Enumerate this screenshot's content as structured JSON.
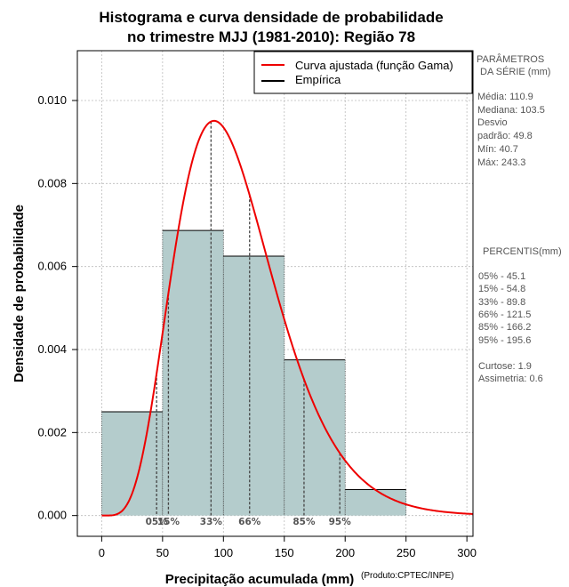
{
  "chart_data": {
    "type": "histogram",
    "title_lines": [
      "Histograma e curva densidade de probabilidade",
      "no trimestre MJJ (1981-2010): Região 78"
    ],
    "xlabel": "Precipitação acumulada (mm)",
    "ylabel": "Densidade de probabilidade",
    "xlim": [
      -20,
      305
    ],
    "ylim": [
      -0.0005,
      0.0112
    ],
    "x_ticks": [
      0,
      50,
      100,
      150,
      200,
      250,
      300
    ],
    "x_tick_labels": [
      "0",
      "50",
      "100",
      "150",
      "200",
      "250",
      "300"
    ],
    "y_ticks": [
      0.0,
      0.002,
      0.004,
      0.006,
      0.008,
      0.01
    ],
    "y_tick_labels": [
      "0.000",
      "0.002",
      "0.004",
      "0.006",
      "0.008",
      "0.010"
    ],
    "grid": true,
    "bins": [
      {
        "start": 0,
        "end": 50,
        "density": 0.0025
      },
      {
        "start": 50,
        "end": 100,
        "density": 0.00687
      },
      {
        "start": 100,
        "end": 150,
        "density": 0.00625
      },
      {
        "start": 150,
        "end": 200,
        "density": 0.00375
      },
      {
        "start": 200,
        "end": 250,
        "density": 0.000625
      }
    ],
    "bar_color": "#b4cccc",
    "curve": {
      "name": "Curva ajustada (função Gama)",
      "distribution": "gamma",
      "shape": 6.0,
      "scale": 18.45,
      "color": "#ee0000"
    },
    "legend": [
      {
        "label": "Curva ajustada (função Gama)",
        "color": "#ee0000"
      },
      {
        "label": "Empírica",
        "color": "#000000"
      }
    ],
    "legend_position": "top-right",
    "percentile_marks": [
      {
        "label": "05%",
        "value": 45.1
      },
      {
        "label": "15%",
        "value": 54.8
      },
      {
        "label": "33%",
        "value": 89.8
      },
      {
        "label": "66%",
        "value": 121.5
      },
      {
        "label": "85%",
        "value": 166.2
      },
      {
        "label": "95%",
        "value": 195.6
      }
    ],
    "credit": "(Produto:CPTEC/INPE)"
  },
  "side_panel": {
    "params_title": [
      "PARÂMETROS",
      "DA SÉRIE (mm)"
    ],
    "params": [
      "Média:  110.9",
      "Mediana:  103.5",
      "Desvio",
      "padrão:  49.8",
      "Mín:  40.7",
      "Máx:  243.3"
    ],
    "percentiles_title": "PERCENTIS(mm)",
    "percentiles": [
      "05% -  45.1",
      "15% -  54.8",
      "33% -  89.8",
      "66% -  121.5",
      "85% -  166.2",
      "95% -  195.6"
    ],
    "stats": [
      "Curtose:  1.9",
      "Assimetria:  0.6"
    ]
  }
}
